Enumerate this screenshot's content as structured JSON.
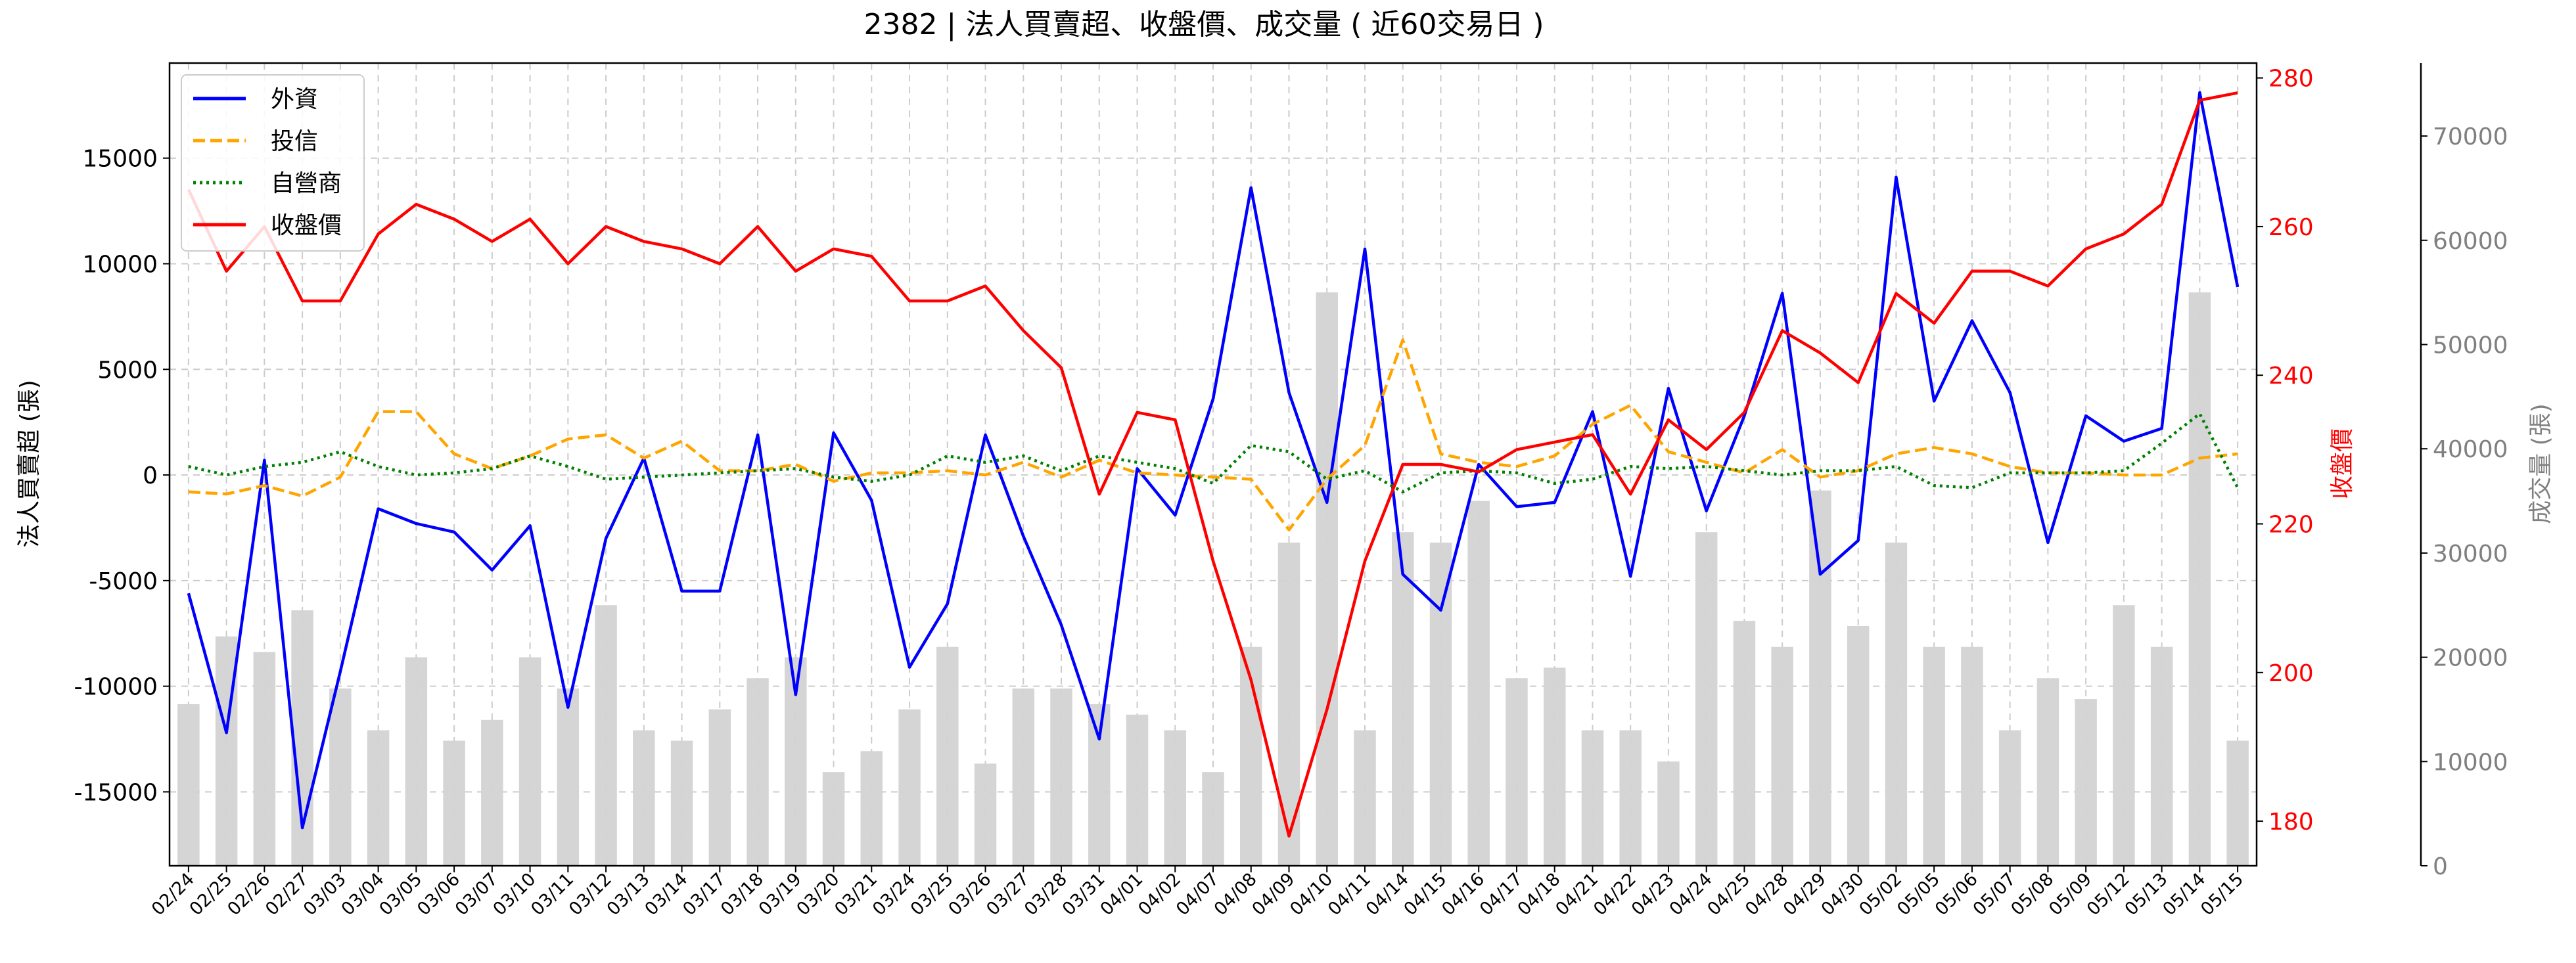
{
  "chart_data": {
    "type": "line",
    "title": "2382 | 法人買賣超、收盤價、成交量 ( 近60交易日 )",
    "ylabel_left": "法人買賣超 (張)",
    "ylabel_right_price": "收盤價",
    "ylabel_right_volume": "成交量 (張)",
    "ylim_left": [
      -18500,
      19500
    ],
    "yticks_left": [
      "15000",
      "10000",
      "5000",
      "0",
      "-5000",
      "-10000",
      "-15000"
    ],
    "ylim_price": [
      174,
      282
    ],
    "yticks_price": [
      "280",
      "260",
      "240",
      "220",
      "200",
      "180"
    ],
    "ylim_volume": [
      0,
      77000
    ],
    "yticks_volume": [
      "70000",
      "60000",
      "50000",
      "40000",
      "30000",
      "20000",
      "10000",
      "0"
    ],
    "grid": true,
    "legend_position": "top-left",
    "colors": {
      "foreign": "#0000ff",
      "trust": "#ffa500",
      "dealer": "#008000",
      "price": "#ff0000",
      "volume": "#d3d3d3",
      "volume_axis": "#808080"
    },
    "categories": [
      "02/24",
      "02/25",
      "02/26",
      "02/27",
      "03/03",
      "03/04",
      "03/05",
      "03/06",
      "03/07",
      "03/10",
      "03/11",
      "03/12",
      "03/13",
      "03/14",
      "03/17",
      "03/18",
      "03/19",
      "03/20",
      "03/21",
      "03/24",
      "03/25",
      "03/26",
      "03/27",
      "03/28",
      "03/31",
      "04/01",
      "04/02",
      "04/07",
      "04/08",
      "04/09",
      "04/10",
      "04/11",
      "04/14",
      "04/15",
      "04/16",
      "04/17",
      "04/18",
      "04/21",
      "04/22",
      "04/23",
      "04/24",
      "04/25",
      "04/28",
      "04/29",
      "04/30",
      "05/02",
      "05/05",
      "05/06",
      "05/07",
      "05/08",
      "05/09",
      "05/12",
      "05/13",
      "05/14",
      "05/15"
    ],
    "series": [
      {
        "name": "外資",
        "style": "solid",
        "values": [
          -5600,
          -12200,
          700,
          -16700,
          -9300,
          -1600,
          -2300,
          -2700,
          -4500,
          -2400,
          -11000,
          -3000,
          800,
          -5500,
          -5500,
          1900,
          -10400,
          2000,
          -1200,
          -9100,
          -6100,
          1900,
          -2900,
          -7100,
          -12500,
          300,
          -1900,
          3600,
          13600,
          3900,
          -1300,
          10700,
          -4700,
          -6400,
          500,
          -1500,
          -1300,
          3000,
          -4800,
          4100,
          -1700,
          2800,
          8600,
          -4700,
          -3100,
          14100,
          3500,
          7300,
          3900,
          -3200,
          2800,
          1600,
          2200,
          18100,
          8900
        ]
      },
      {
        "name": "投信",
        "style": "dashed",
        "values": [
          -800,
          -900,
          -500,
          -1000,
          -100,
          3000,
          3000,
          1000,
          300,
          900,
          1700,
          1900,
          800,
          1600,
          200,
          200,
          500,
          -300,
          100,
          100,
          200,
          0,
          600,
          -100,
          700,
          100,
          0,
          -100,
          -200,
          -2600,
          -200,
          1400,
          6400,
          1000,
          600,
          400,
          900,
          2400,
          3300,
          1100,
          600,
          100,
          1200,
          -100,
          200,
          1000,
          1300,
          1000,
          400,
          100,
          100,
          0,
          0,
          800,
          1000
        ]
      },
      {
        "name": "自營商",
        "style": "dotted",
        "values": [
          400,
          0,
          400,
          600,
          1100,
          400,
          0,
          100,
          300,
          900,
          400,
          -200,
          -100,
          0,
          100,
          200,
          300,
          -100,
          -300,
          0,
          900,
          600,
          900,
          200,
          900,
          600,
          300,
          -400,
          1400,
          1100,
          -200,
          200,
          -800,
          100,
          200,
          100,
          -400,
          -200,
          400,
          300,
          400,
          200,
          0,
          200,
          200,
          400,
          -500,
          -600,
          100,
          100,
          100,
          200,
          1500,
          2900,
          -600
        ]
      }
    ],
    "price": {
      "name": "收盤價",
      "values": [
        265,
        254,
        260,
        250,
        250,
        259,
        263,
        261,
        258,
        261,
        255,
        260,
        258,
        257,
        255,
        260,
        254,
        257,
        256,
        250,
        250,
        252,
        246,
        241,
        224,
        235,
        234,
        215,
        199,
        178,
        195,
        215,
        228,
        228,
        227,
        230,
        231,
        232,
        224,
        234,
        230,
        235,
        246,
        243,
        239,
        251,
        247,
        254,
        254,
        252,
        257,
        259,
        263,
        277,
        278
      ]
    },
    "volume": {
      "name": "成交量",
      "values": [
        15500,
        22000,
        20500,
        24500,
        17000,
        13000,
        20000,
        12000,
        14000,
        20000,
        17000,
        25000,
        13000,
        12000,
        15000,
        18000,
        20000,
        9000,
        11000,
        15000,
        21000,
        9800,
        17000,
        17000,
        15500,
        14500,
        13000,
        9000,
        21000,
        31000,
        55000,
        13000,
        32000,
        31000,
        35000,
        18000,
        19000,
        13000,
        13000,
        10000,
        32000,
        23500,
        21000,
        36000,
        23000,
        31000,
        21000,
        21000,
        13000,
        18000,
        16000,
        25000,
        21000,
        55000,
        12000
      ]
    }
  }
}
